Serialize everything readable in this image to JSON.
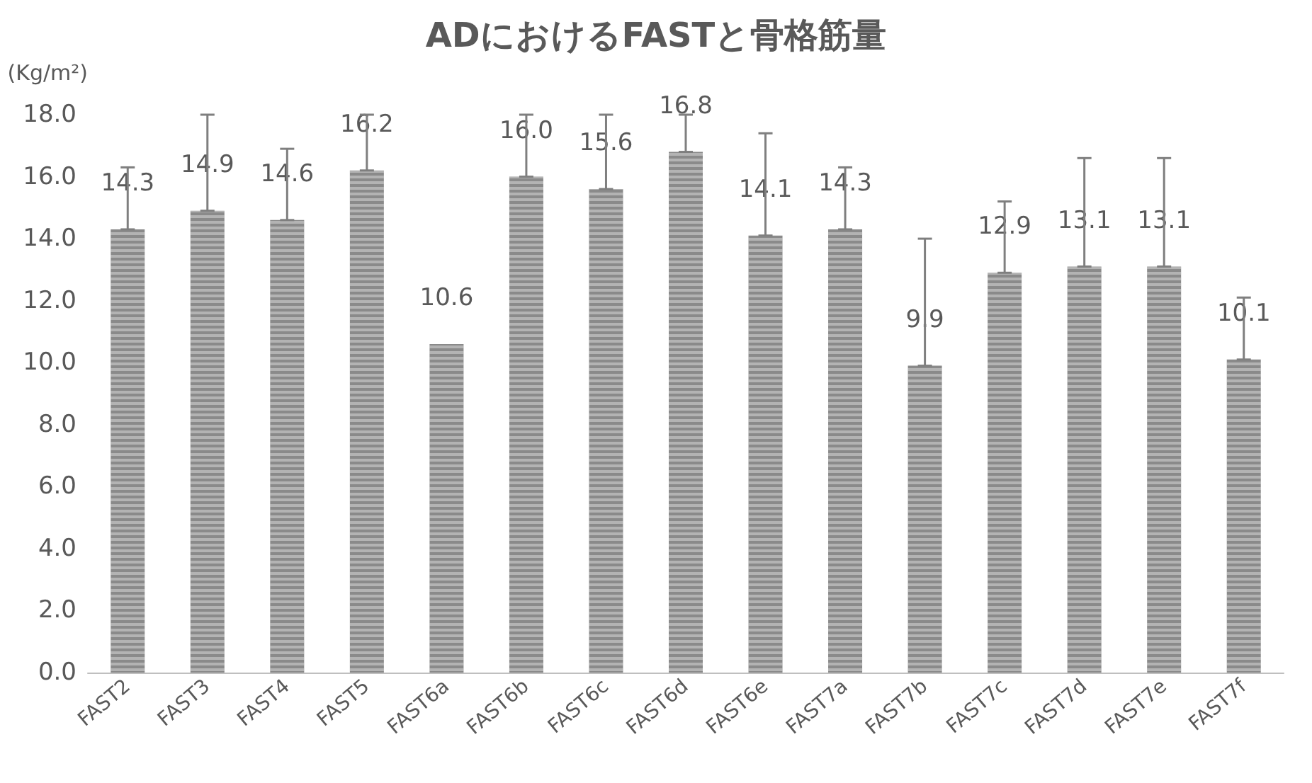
{
  "chart_data": {
    "type": "bar",
    "title": "ADにおけるFASTと骨格筋量",
    "ylabel": "(Kg/m²)",
    "categories": [
      "FAST2",
      "FAST3",
      "FAST4",
      "FAST5",
      "FAST6a",
      "FAST6b",
      "FAST6c",
      "FAST6d",
      "FAST6e",
      "FAST7a",
      "FAST7b",
      "FAST7c",
      "FAST7d",
      "FAST7e",
      "FAST7f"
    ],
    "values": [
      14.3,
      14.9,
      14.6,
      16.2,
      10.6,
      16.0,
      15.6,
      16.8,
      14.1,
      14.3,
      9.9,
      12.9,
      13.1,
      13.1,
      10.1
    ],
    "errors": [
      [
        14.3,
        16.3
      ],
      [
        14.9,
        18.0
      ],
      [
        14.6,
        16.9
      ],
      [
        16.2,
        18.0
      ],
      null,
      [
        16.0,
        18.0
      ],
      [
        15.6,
        18.0
      ],
      [
        16.8,
        18.0
      ],
      [
        14.1,
        17.4
      ],
      [
        14.3,
        16.3
      ],
      [
        9.9,
        14.0
      ],
      [
        12.9,
        15.2
      ],
      [
        13.1,
        16.6
      ],
      [
        13.1,
        16.6
      ],
      [
        10.1,
        12.1
      ]
    ],
    "value_labels": [
      "14.3",
      "14.9",
      "14.6",
      "16.2",
      "10.6",
      "16.0",
      "15.6",
      "16.8",
      "14.1",
      "14.3",
      "9.9",
      "12.9",
      "13.1",
      "13.1",
      "10.1"
    ],
    "color": "#8a8a8a",
    "grid": false,
    "ylim": [
      0,
      18
    ],
    "yticks": [
      {
        "value": 0,
        "label": "0.0"
      },
      {
        "value": 2,
        "label": "2.0"
      },
      {
        "value": 4,
        "label": "4.0"
      },
      {
        "value": 6,
        "label": "6.0"
      },
      {
        "value": 8,
        "label": "8.0"
      },
      {
        "value": 10,
        "label": "10.0"
      },
      {
        "value": 12,
        "label": "12.0"
      },
      {
        "value": 14,
        "label": "14.0"
      },
      {
        "value": 16,
        "label": "16.0"
      },
      {
        "value": 18,
        "label": "18.0"
      }
    ]
  }
}
